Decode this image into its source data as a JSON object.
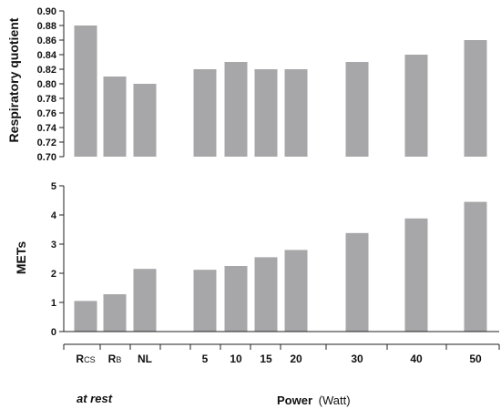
{
  "chart_data": [
    {
      "type": "bar",
      "ylabel": "Respiratory quotient",
      "ylim": [
        0.7,
        0.9
      ],
      "yticks": [
        "0.70",
        "0.72",
        "0.74",
        "0.76",
        "0.78",
        "0.80",
        "0.82",
        "0.84",
        "0.86",
        "0.88",
        "0.90"
      ],
      "categories": [
        "RCS",
        "RB",
        "NL",
        "5",
        "10",
        "15",
        "20",
        "30",
        "40",
        "50"
      ],
      "values": [
        0.88,
        0.81,
        0.8,
        0.82,
        0.83,
        0.82,
        0.82,
        0.83,
        0.84,
        0.86
      ],
      "bar_color": "#a7a7a9",
      "grid": false
    },
    {
      "type": "bar",
      "ylabel": "METs",
      "ylim": [
        0,
        5
      ],
      "yticks": [
        "0",
        "1",
        "2",
        "3",
        "4",
        "5"
      ],
      "categories": [
        "RCS",
        "RB",
        "NL",
        "5",
        "10",
        "15",
        "20",
        "30",
        "40",
        "50"
      ],
      "values": [
        1.05,
        1.28,
        2.15,
        2.12,
        2.25,
        2.55,
        2.8,
        3.38,
        3.88,
        4.45
      ],
      "bar_color": "#a7a7a9",
      "grid": false
    }
  ],
  "x_axis": {
    "labels": [
      {
        "main": "R",
        "sub": "CS"
      },
      {
        "main": "R",
        "sub": "B"
      },
      {
        "main": "NL",
        "sub": ""
      },
      {
        "main": "5",
        "sub": ""
      },
      {
        "main": "10",
        "sub": ""
      },
      {
        "main": "15",
        "sub": ""
      },
      {
        "main": "20",
        "sub": ""
      },
      {
        "main": "30",
        "sub": ""
      },
      {
        "main": "40",
        "sub": ""
      },
      {
        "main": "50",
        "sub": ""
      }
    ],
    "rest_caption": "at rest",
    "power_caption_bold": "Power",
    "power_caption_normal": "(Watt)"
  }
}
